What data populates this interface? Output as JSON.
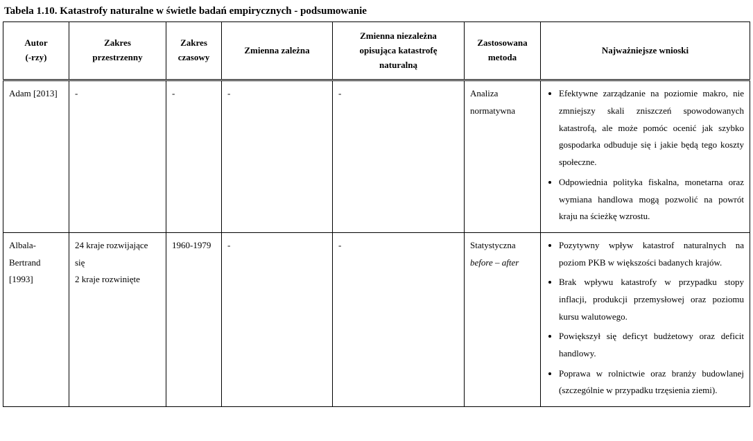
{
  "title": "Tabela 1.10. Katastrofy naturalne w świetle badań empirycznych - podsumowanie",
  "headers": {
    "author": "Autor\n(-rzy)",
    "spatial": "Zakres\nprzestrzenny",
    "time": "Zakres\nczasowy",
    "dep": "Zmienna zależna",
    "indep": "Zmienna niezależna\nopisująca katastrofę\nnaturalną",
    "method": "Zastosowana\nmetoda",
    "concl": "Najważniejsze wnioski"
  },
  "rows": [
    {
      "author": "Adam [2013]",
      "spatial": "-",
      "time": "-",
      "dep": "-",
      "indep": "-",
      "method_plain": "Analiza normatywna",
      "conclusions": [
        "Efektywne zarządzanie na poziomie makro, nie zmniejszy skali zniszczeń spowodowanych katastrofą, ale może pomóc ocenić jak szybko gospodarka odbuduje się i jakie będą tego koszty społeczne.",
        "Odpowiednia polityka fiskalna, monetarna oraz wymiana handlowa mogą pozwolić na powrót kraju na ścieżkę wzrostu."
      ]
    },
    {
      "author": "Albala-Bertrand [1993]",
      "spatial": "24 kraje rozwijające się\n2 kraje rozwinięte",
      "time": "1960-1979",
      "dep": "-",
      "indep": "-",
      "method_plain": "Statystyczna",
      "method_italic": "before – after",
      "conclusions": [
        "Pozytywny wpływ katastrof naturalnych na poziom PKB w większości badanych krajów.",
        "Brak wpływu katastrofy w przypadku stopy inflacji, produkcji przemysłowej oraz poziomu kursu walutowego.",
        "Powiększył się deficyt budżetowy oraz deficit handlowy.",
        "Poprawa w rolnictwie oraz branży budowlanej (szczególnie w przypadku trzęsienia ziemi)."
      ]
    }
  ]
}
